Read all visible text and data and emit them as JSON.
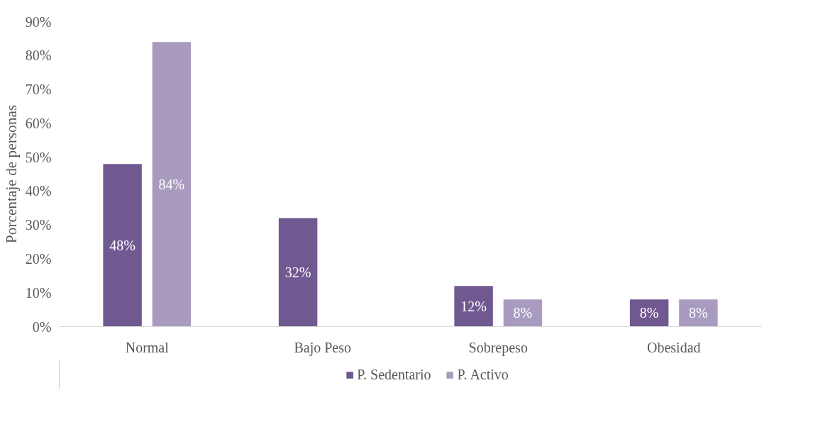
{
  "chart_data": {
    "type": "bar",
    "ylabel": "Porcentaje de personas",
    "categories": [
      "Normal",
      "Bajo Peso",
      "Sobrepeso",
      "Obesidad"
    ],
    "series": [
      {
        "name": "P. Sedentario",
        "color": "#705891",
        "values": [
          48,
          32,
          12,
          8
        ],
        "value_labels": [
          "48%",
          "32%",
          "12%",
          "8%"
        ]
      },
      {
        "name": "P. Activo",
        "color": "#a99bc0",
        "values": [
          84,
          0,
          8,
          8
        ],
        "value_labels": [
          "84%",
          null,
          "8%",
          "8%"
        ]
      }
    ],
    "ylim": [
      0,
      90
    ],
    "yticks": [
      {
        "value": 0,
        "label": "0%"
      },
      {
        "value": 10,
        "label": "10%"
      },
      {
        "value": 20,
        "label": "20%"
      },
      {
        "value": 30,
        "label": "30%"
      },
      {
        "value": 40,
        "label": "40%"
      },
      {
        "value": 50,
        "label": "50%"
      },
      {
        "value": 60,
        "label": "60%"
      },
      {
        "value": 70,
        "label": "70%"
      },
      {
        "value": 80,
        "label": "80%"
      },
      {
        "value": 90,
        "label": "90%"
      }
    ],
    "grid": false,
    "legend": "bottom"
  }
}
